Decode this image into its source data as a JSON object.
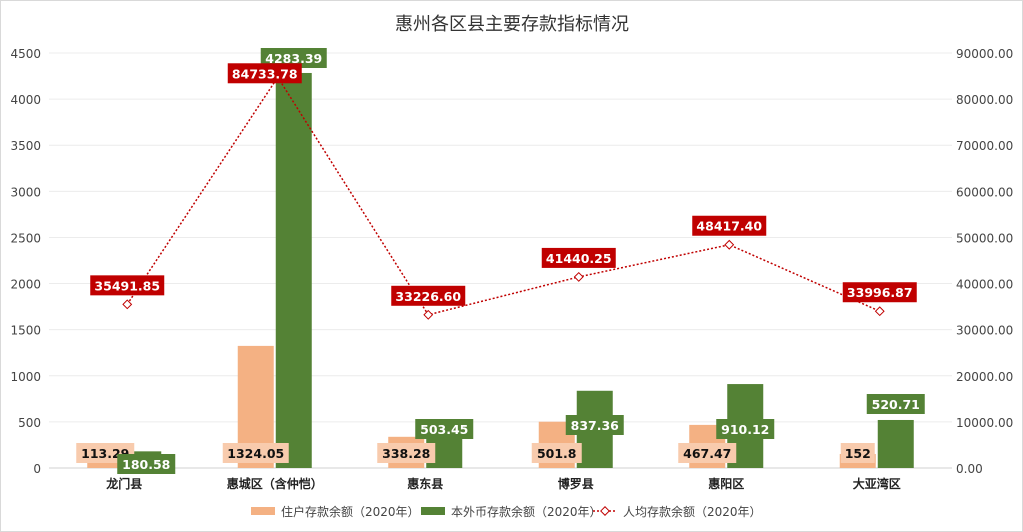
{
  "chart_data": {
    "type": "bar",
    "title": "惠州各区县主要存款指标情况",
    "categories": [
      "龙门县",
      "惠城区（含仲恺）",
      "惠东县",
      "博罗县",
      "惠阳区",
      "大亚湾区"
    ],
    "series": [
      {
        "name": "住户存款余额（2020年）",
        "type": "bar",
        "axis": "left",
        "color": "#f4b183",
        "values": [
          113.29,
          1324.05,
          338.28,
          501.8,
          467.47,
          152
        ],
        "labels": [
          "113.29",
          "1324.05",
          "338.28",
          "501.8",
          "467.47",
          "152"
        ]
      },
      {
        "name": "本外币存款余额（2020年）",
        "type": "bar",
        "axis": "left",
        "color": "#548235",
        "values": [
          180.58,
          4283.39,
          503.45,
          837.36,
          910.12,
          520.71
        ],
        "labels": [
          "180.58",
          "4283.39",
          "503.45",
          "837.36",
          "910.12",
          "520.71"
        ]
      },
      {
        "name": "人均存款余额（2020年）",
        "type": "line",
        "axis": "right",
        "color": "#c00000",
        "values": [
          35491.85,
          84733.78,
          33226.6,
          41440.25,
          48417.4,
          33996.87
        ],
        "labels": [
          "35491.85",
          "84733.78",
          "33226.60",
          "41440.25",
          "48417.40",
          "33996.87"
        ]
      }
    ],
    "y_left": {
      "range": [
        0,
        4500
      ],
      "ticks": [
        "0",
        "500",
        "1000",
        "1500",
        "2000",
        "2500",
        "3000",
        "3500",
        "4000",
        "4500"
      ]
    },
    "y_right": {
      "range": [
        0,
        90000
      ],
      "ticks": [
        "0.00",
        "10000.00",
        "20000.00",
        "30000.00",
        "40000.00",
        "50000.00",
        "60000.00",
        "70000.00",
        "80000.00",
        "90000.00"
      ]
    },
    "grid": true,
    "legend": "bottom"
  }
}
